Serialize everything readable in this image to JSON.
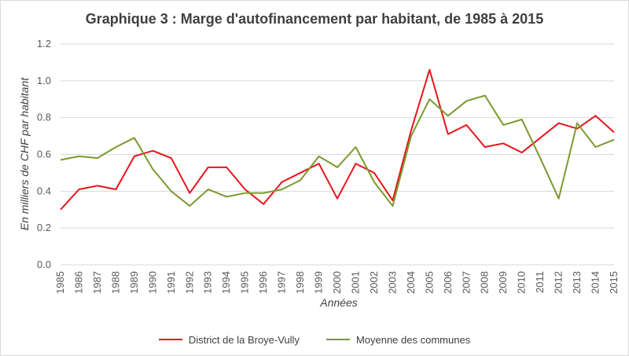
{
  "chart_data": {
    "type": "line",
    "title": "Graphique 3 : Marge d'autofinancement par habitant, de 1985 à 2015",
    "xlabel": "Années",
    "ylabel": "En milliers de CHF par habitant",
    "ylim": [
      0,
      1.2
    ],
    "yticks": [
      "0.0",
      "0.2",
      "0.4",
      "0.6",
      "0.8",
      "1.0",
      "1.2"
    ],
    "grid": true,
    "legend_position": "bottom",
    "categories": [
      "1985",
      "1986",
      "1987",
      "1988",
      "1989",
      "1990",
      "1991",
      "1992",
      "1993",
      "1994",
      "1995",
      "1996",
      "1997",
      "1998",
      "1999",
      "2000",
      "2001",
      "2002",
      "2003",
      "2004",
      "2005",
      "2006",
      "2007",
      "2008",
      "2009",
      "2010",
      "2011",
      "2012",
      "2013",
      "2014",
      "2015"
    ],
    "series": [
      {
        "name": "District de la Broye-Vully",
        "color": "#e8141b",
        "values": [
          0.3,
          0.41,
          0.43,
          0.41,
          0.59,
          0.62,
          0.58,
          0.39,
          0.53,
          0.53,
          0.41,
          0.33,
          0.45,
          0.5,
          0.55,
          0.36,
          0.55,
          0.5,
          0.35,
          0.73,
          1.06,
          0.71,
          0.76,
          0.64,
          0.66,
          0.61,
          0.69,
          0.77,
          0.74,
          0.81,
          0.72
        ]
      },
      {
        "name": "Moyenne des communes",
        "color": "#7a9a2e",
        "values": [
          0.57,
          0.59,
          0.58,
          0.64,
          0.69,
          0.52,
          0.4,
          0.32,
          0.41,
          0.37,
          0.39,
          0.39,
          0.41,
          0.46,
          0.59,
          0.53,
          0.64,
          0.45,
          0.32,
          0.7,
          0.9,
          0.81,
          0.89,
          0.92,
          0.76,
          0.79,
          0.58,
          0.36,
          0.77,
          0.64,
          0.68
        ]
      }
    ]
  }
}
